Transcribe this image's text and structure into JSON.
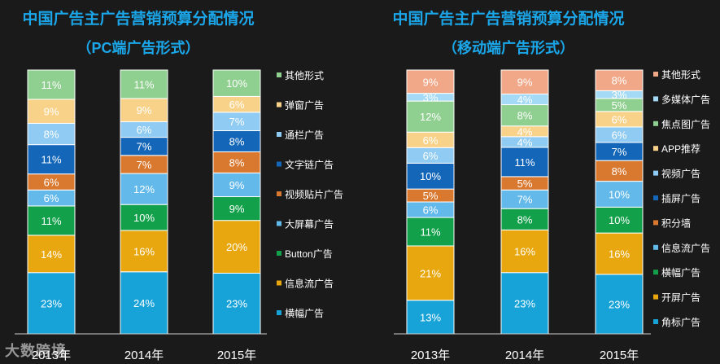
{
  "watermark": "大数跨境",
  "chart_data": [
    {
      "type": "bar",
      "stacked": true,
      "title": "中国广告主广告营销预算分配情况",
      "subtitle": "（PC端广告形式）",
      "categories": [
        "2013年",
        "2014年",
        "2015年"
      ],
      "series": [
        {
          "name": "横幅广告",
          "color": "#17a2d8",
          "values": [
            23,
            24,
            23
          ]
        },
        {
          "name": "信息流广告",
          "color": "#e8a70e",
          "values": [
            14,
            16,
            20
          ]
        },
        {
          "name": "Button广告",
          "color": "#13a04a",
          "values": [
            11,
            10,
            9
          ]
        },
        {
          "name": "大屏幕广告",
          "color": "#63b9ea",
          "values": [
            6,
            12,
            9
          ]
        },
        {
          "name": "视频贴片广告",
          "color": "#d9782f",
          "values": [
            6,
            7,
            8
          ]
        },
        {
          "name": "文字链广告",
          "color": "#1366b8",
          "values": [
            11,
            7,
            8
          ]
        },
        {
          "name": "通栏广告",
          "color": "#8fcbf2",
          "values": [
            8,
            6,
            7
          ]
        },
        {
          "name": "弹窗广告",
          "color": "#f9d28a",
          "values": [
            9,
            9,
            6
          ]
        },
        {
          "name": "其他形式",
          "color": "#8fcf8f",
          "values": [
            11,
            11,
            10
          ]
        }
      ],
      "legend": "right"
    },
    {
      "type": "bar",
      "stacked": true,
      "title": "中国广告主广告营销预算分配情况",
      "subtitle": "（移动端广告形式）",
      "categories": [
        "2013年",
        "2014年",
        "2015年"
      ],
      "series": [
        {
          "name": "角标广告",
          "color": "#17a2d8",
          "values": [
            13,
            23,
            23
          ]
        },
        {
          "name": "开屏广告",
          "color": "#e8a70e",
          "values": [
            21,
            16,
            16
          ]
        },
        {
          "name": "横幅广告",
          "color": "#13a04a",
          "values": [
            11,
            8,
            10
          ]
        },
        {
          "name": "信息流广告",
          "color": "#63b9ea",
          "values": [
            6,
            7,
            10
          ]
        },
        {
          "name": "积分墙",
          "color": "#d9782f",
          "values": [
            5,
            5,
            8
          ]
        },
        {
          "name": "插屏广告",
          "color": "#1366b8",
          "values": [
            10,
            11,
            7
          ]
        },
        {
          "name": "视频广告",
          "color": "#8fcbf2",
          "values": [
            6,
            4,
            6
          ]
        },
        {
          "name": "APP推荐",
          "color": "#f9d28a",
          "values": [
            6,
            4,
            6
          ]
        },
        {
          "name": "焦点图广告",
          "color": "#8fcf8f",
          "values": [
            12,
            8,
            5
          ]
        },
        {
          "name": "多媒体广告",
          "color": "#a4daf5",
          "values": [
            3,
            4,
            3
          ]
        },
        {
          "name": "其他形式",
          "color": "#f0a888",
          "values": [
            9,
            9,
            8
          ]
        }
      ],
      "legend": "right"
    }
  ]
}
